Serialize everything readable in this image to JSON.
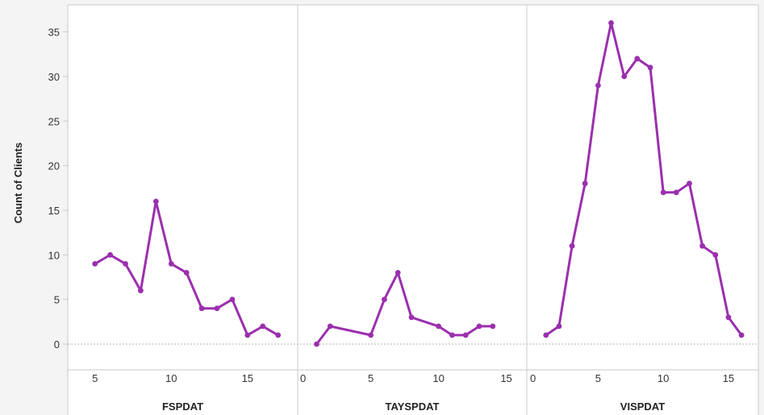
{
  "chart_data": {
    "type": "line",
    "ylabel": "Count of Clients",
    "ylim": [
      -2,
      37
    ],
    "yticks": [
      0,
      5,
      10,
      15,
      20,
      25,
      30,
      35
    ],
    "grid": false,
    "line_color": "#9b2fae",
    "panels": [
      {
        "name": "FSPDAT",
        "xlim": [
          3.8,
          17.6
        ],
        "xticks": [
          5,
          10,
          15
        ],
        "series": [
          {
            "x": [
              5,
              6,
              7,
              8,
              9,
              10,
              11,
              12,
              13,
              14,
              15,
              16,
              17
            ],
            "values": [
              9,
              10,
              9,
              6,
              16,
              9,
              8,
              4,
              4,
              5,
              1,
              2,
              1
            ]
          }
        ]
      },
      {
        "name": "TAYSPDAT",
        "xlim": [
          -0.1,
          15.8
        ],
        "xticks": [
          0,
          5,
          10,
          15
        ],
        "series": [
          {
            "x": [
              1,
              2,
              5,
              6,
              7,
              8,
              10,
              11,
              12,
              13,
              14
            ],
            "values": [
              0,
              2,
              1,
              5,
              8,
              3,
              2,
              1,
              1,
              2,
              2
            ]
          }
        ]
      },
      {
        "name": "VISPDAT",
        "xlim": [
          -0.1,
          16.8
        ],
        "xticks": [
          0,
          5,
          10,
          15
        ],
        "series": [
          {
            "x": [
              1,
              2,
              3,
              4,
              5,
              6,
              7,
              8,
              9,
              10,
              11,
              12,
              13,
              14,
              15,
              16
            ],
            "values": [
              1,
              2,
              11,
              18,
              29,
              36,
              30,
              32,
              31,
              17,
              17,
              18,
              11,
              10,
              3,
              1
            ]
          }
        ]
      }
    ]
  }
}
